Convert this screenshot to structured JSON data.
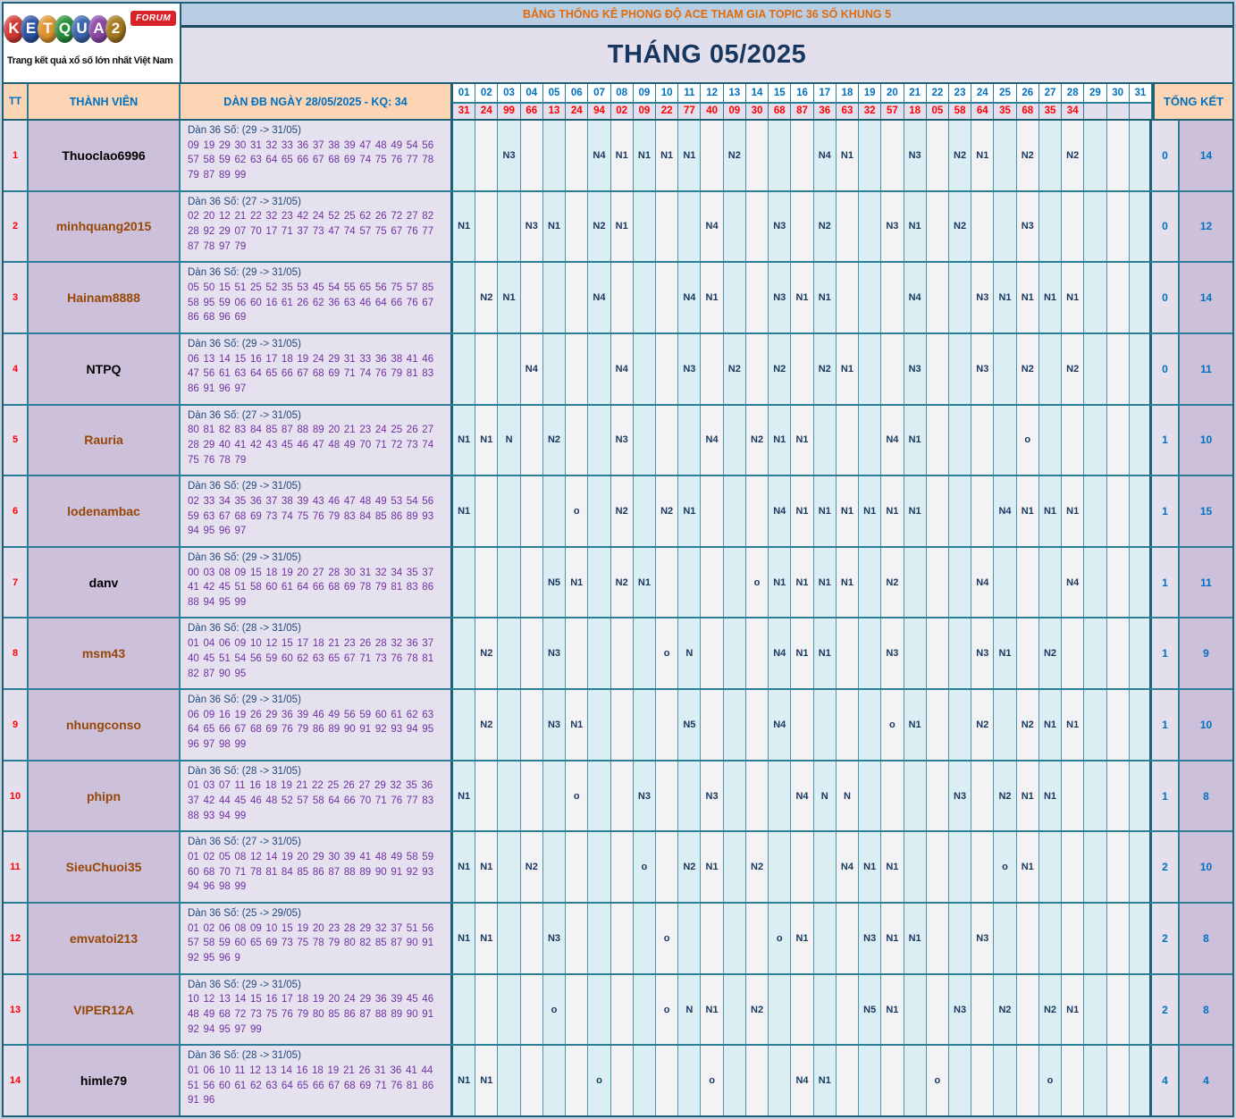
{
  "logo": {
    "letters": [
      {
        "ch": "K",
        "color": "#d23a36"
      },
      {
        "ch": "E",
        "color": "#2b54a3"
      },
      {
        "ch": "T",
        "color": "#e0952e"
      },
      {
        "ch": "Q",
        "color": "#28913c"
      },
      {
        "ch": "U",
        "color": "#3b66b0"
      },
      {
        "ch": "A",
        "color": "#8b49a6"
      },
      {
        "ch": "2",
        "color": "#a67a1f"
      }
    ],
    "forum": "FORUM",
    "tagline": "Trang kết quả xổ số lớn nhất Việt Nam"
  },
  "banner": "BẢNG THỐNG KÊ PHONG ĐỘ ACE THAM GIA TOPIC 36 SỐ KHUNG 5",
  "title": "THÁNG 05/2025",
  "columns": {
    "tt": "TT",
    "member": "THÀNH VIÊN",
    "dan_header": "DÀN ĐB NGÀY 28/05/2025 - KQ: 34",
    "total_header": "TỔNG KẾT"
  },
  "days": [
    "01",
    "02",
    "03",
    "04",
    "05",
    "06",
    "07",
    "08",
    "09",
    "10",
    "11",
    "12",
    "13",
    "14",
    "15",
    "16",
    "17",
    "18",
    "19",
    "20",
    "21",
    "22",
    "23",
    "24",
    "25",
    "26",
    "27",
    "28",
    "29",
    "30",
    "31"
  ],
  "results": [
    "31",
    "24",
    "99",
    "66",
    "13",
    "24",
    "94",
    "02",
    "09",
    "22",
    "77",
    "40",
    "09",
    "30",
    "68",
    "87",
    "36",
    "63",
    "32",
    "57",
    "18",
    "05",
    "58",
    "64",
    "35",
    "68",
    "35",
    "34",
    "",
    "",
    ""
  ],
  "colors": {
    "border_teal": "#2a7f97",
    "border_dark": "#1e6075",
    "banner_bg": "#b9cde5",
    "banner_text": "#e26b0a",
    "title_bg": "#e4dfec",
    "title_text": "#17375e",
    "header_bg": "#fcd5b4",
    "header_text": "#0070c0",
    "result_text": "#ff0000",
    "day_odd_bg": "#daeef3",
    "day_even_bg": "#f3f3f5",
    "mark_text": "#17375e",
    "member_bg": "#ccc0da",
    "dan_bg": "#e6e1ef",
    "dan_numbers": "#7030a0",
    "dan_range": "#1f497d",
    "name_brown": "#974706",
    "name_black": "#000000"
  },
  "rows": [
    {
      "tt": "1",
      "name": "Thuoclao6996",
      "name_color": "#000000",
      "dan_range": "Dàn 36 Số: (29 -> 31/05)",
      "dan_numbers": "09 19 29 30 31 32 33 36 37 38 39 47 48 49 54 56 57 58 59 62 63 64 65 66 67 68 69 74 75 76 77 78 79 87 89 99",
      "marks": {
        "3": "N3",
        "7": "N4",
        "8": "N1",
        "9": "N1",
        "10": "N1",
        "11": "N1",
        "13": "N2",
        "17": "N4",
        "18": "N1",
        "21": "N3",
        "23": "N2",
        "24": "N1",
        "26": "N2",
        "28": "N2"
      },
      "miss": "0",
      "score": "14"
    },
    {
      "tt": "2",
      "name": "minhquang2015",
      "name_color": "#974706",
      "dan_range": "Dàn 36 Số: (27 -> 31/05)",
      "dan_numbers": "02 20 12 21 22 32 23 42 24 52 25 62 26 72 27 82 28 92 29 07 70 17 71 37 73 47 74 57 75 67 76 77 87 78 97 79",
      "marks": {
        "1": "N1",
        "4": "N3",
        "5": "N1",
        "7": "N2",
        "8": "N1",
        "12": "N4",
        "15": "N3",
        "17": "N2",
        "20": "N3",
        "21": "N1",
        "23": "N2",
        "26": "N3"
      },
      "miss": "0",
      "score": "12"
    },
    {
      "tt": "3",
      "name": "Hainam8888",
      "name_color": "#974706",
      "dan_range": "Dàn 36 Số: (29 -> 31/05)",
      "dan_numbers": "05 50 15 51 25 52 35 53 45 54 55 65 56 75 57 85 58 95 59 06 60 16 61 26 62 36 63 46 64 66 76 67 86 68 96 69",
      "marks": {
        "2": "N2",
        "3": "N1",
        "7": "N4",
        "11": "N4",
        "12": "N1",
        "15": "N3",
        "16": "N1",
        "17": "N1",
        "21": "N4",
        "24": "N3",
        "25": "N1",
        "26": "N1",
        "27": "N1",
        "28": "N1"
      },
      "miss": "0",
      "score": "14"
    },
    {
      "tt": "4",
      "name": "NTPQ",
      "name_color": "#000000",
      "dan_range": "Dàn 36 Số: (29 -> 31/05)",
      "dan_numbers": "06 13 14 15 16 17 18 19 24 29 31 33 36 38 41 46 47 56 61 63 64 65 66 67 68 69 71 74 76 79 81 83 86 91 96 97",
      "marks": {
        "4": "N4",
        "8": "N4",
        "11": "N3",
        "13": "N2",
        "15": "N2",
        "17": "N2",
        "18": "N1",
        "21": "N3",
        "24": "N3",
        "26": "N2",
        "28": "N2"
      },
      "miss": "0",
      "score": "11"
    },
    {
      "tt": "5",
      "name": "Rauria",
      "name_color": "#974706",
      "dan_range": "Dàn 36 Số: (27 -> 31/05)",
      "dan_numbers": "80 81 82 83 84 85 87 88 89 20 21 23 24 25 26 27 28 29 40 41 42 43 45 46 47 48 49 70 71 72 73 74 75 76 78 79",
      "marks": {
        "1": "N1",
        "2": "N1",
        "3": "N",
        "5": "N2",
        "8": "N3",
        "12": "N4",
        "14": "N2",
        "15": "N1",
        "16": "N1",
        "20": "N4",
        "21": "N1",
        "26": "o"
      },
      "miss": "1",
      "score": "10"
    },
    {
      "tt": "6",
      "name": "lodenambac",
      "name_color": "#974706",
      "dan_range": "Dàn 36 Số: (29 -> 31/05)",
      "dan_numbers": "02 33 34 35 36 37 38 39 43 46 47 48 49 53 54 56 59 63 67 68 69 73 74 75 76 79 83 84 85 86 89 93 94 95 96 97",
      "marks": {
        "1": "N1",
        "6": "o",
        "8": "N2",
        "10": "N2",
        "11": "N1",
        "15": "N4",
        "16": "N1",
        "17": "N1",
        "18": "N1",
        "19": "N1",
        "20": "N1",
        "21": "N1",
        "25": "N4",
        "26": "N1",
        "27": "N1",
        "28": "N1"
      },
      "miss": "1",
      "score": "15"
    },
    {
      "tt": "7",
      "name": "danv",
      "name_color": "#000000",
      "dan_range": "Dàn 36 Số: (29 -> 31/05)",
      "dan_numbers": "00 03 08 09 15 18 19 20 27 28 30 31 32 34 35 37 41 42 45 51 58 60 61 64 66 68 69 78 79 81 83 86 88 94 95 99",
      "marks": {
        "5": "N5",
        "6": "N1",
        "8": "N2",
        "9": "N1",
        "14": "o",
        "15": "N1",
        "16": "N1",
        "17": "N1",
        "18": "N1",
        "20": "N2",
        "24": "N4",
        "28": "N4"
      },
      "miss": "1",
      "score": "11"
    },
    {
      "tt": "8",
      "name": "msm43",
      "name_color": "#974706",
      "dan_range": "Dàn 36 Số: (28 -> 31/05)",
      "dan_numbers": "01 04 06 09 10 12 15 17 18 21 23 26 28 32 36 37 40 45 51 54 56 59 60 62 63 65 67 71 73 76 78 81 82 87 90 95",
      "marks": {
        "2": "N2",
        "5": "N3",
        "10": "o",
        "11": "N",
        "15": "N4",
        "16": "N1",
        "17": "N1",
        "20": "N3",
        "24": "N3",
        "25": "N1",
        "27": "N2"
      },
      "miss": "1",
      "score": "9"
    },
    {
      "tt": "9",
      "name": "nhungconso",
      "name_color": "#974706",
      "dan_range": "Dàn 36 Số: (29 -> 31/05)",
      "dan_numbers": "06 09 16 19 26 29 36 39 46 49 56 59 60 61 62 63 64 65 66 67 68 69 76 79 86 89 90 91 92 93 94 95 96 97 98 99",
      "marks": {
        "2": "N2",
        "5": "N3",
        "6": "N1",
        "11": "N5",
        "15": "N4",
        "20": "o",
        "21": "N1",
        "24": "N2",
        "26": "N2",
        "27": "N1",
        "28": "N1"
      },
      "miss": "1",
      "score": "10"
    },
    {
      "tt": "10",
      "name": "phipn",
      "name_color": "#974706",
      "dan_range": "Dàn 36 Số: (28 -> 31/05)",
      "dan_numbers": "01 03 07 11 16 18 19 21 22 25 26 27 29 32 35 36 37 42 44 45 46 48 52 57 58 64 66 70 71 76 77 83 88 93 94 99",
      "marks": {
        "1": "N1",
        "6": "o",
        "9": "N3",
        "12": "N3",
        "16": "N4",
        "17": "N",
        "18": "N",
        "23": "N3",
        "25": "N2",
        "26": "N1",
        "27": "N1"
      },
      "miss": "1",
      "score": "8"
    },
    {
      "tt": "11",
      "name": "SieuChuoi35",
      "name_color": "#974706",
      "dan_range": "Dàn 36 Số: (27 -> 31/05)",
      "dan_numbers": "01 02 05 08 12 14 19 20 29 30 39 41 48 49 58 59 60 68 70 71 78 81 84 85 86 87 88 89 90 91 92 93 94 96 98 99",
      "marks": {
        "1": "N1",
        "2": "N1",
        "4": "N2",
        "9": "o",
        "11": "N2",
        "12": "N1",
        "14": "N2",
        "18": "N4",
        "19": "N1",
        "20": "N1",
        "25": "o",
        "26": "N1"
      },
      "miss": "2",
      "score": "10"
    },
    {
      "tt": "12",
      "name": "emvatoi213",
      "name_color": "#974706",
      "dan_range": "Dàn 36 Số: (25 -> 29/05)",
      "dan_numbers": "01 02 06 08 09 10 15 19 20 23 28 29 32 37 51 56 57 58 59 60 65 69 73 75 78 79 80 82 85 87 90 91 92 95 96 9",
      "marks": {
        "1": "N1",
        "2": "N1",
        "5": "N3",
        "10": "o",
        "15": "o",
        "16": "N1",
        "19": "N3",
        "20": "N1",
        "21": "N1",
        "24": "N3"
      },
      "miss": "2",
      "score": "8"
    },
    {
      "tt": "13",
      "name": "VIPER12A",
      "name_color": "#974706",
      "dan_range": "Dàn 36 Số: (29 -> 31/05)",
      "dan_numbers": "10 12 13 14 15 16 17 18 19 20 24 29 36 39 45 46 48 49 68 72 73 75 76 79 80 85 86 87 88 89 90 91 92 94 95 97 99",
      "marks": {
        "5": "o",
        "10": "o",
        "11": "N",
        "12": "N1",
        "14": "N2",
        "19": "N5",
        "20": "N1",
        "23": "N3",
        "25": "N2",
        "27": "N2",
        "28": "N1"
      },
      "miss": "2",
      "score": "8"
    },
    {
      "tt": "14",
      "name": "himle79",
      "name_color": "#000000",
      "dan_range": "Dàn 36 Số: (28 -> 31/05)",
      "dan_numbers": "01 06 10 11 12 13 14 16 18 19 21 26 31 36 41 44 51 56 60 61 62 63 64 65 66 67 68 69 71 76 81 86 91 96",
      "marks": {
        "1": "N1",
        "2": "N1",
        "7": "o",
        "12": "o",
        "16": "N4",
        "17": "N1",
        "22": "o",
        "27": "o"
      },
      "miss": "4",
      "score": "4"
    }
  ]
}
